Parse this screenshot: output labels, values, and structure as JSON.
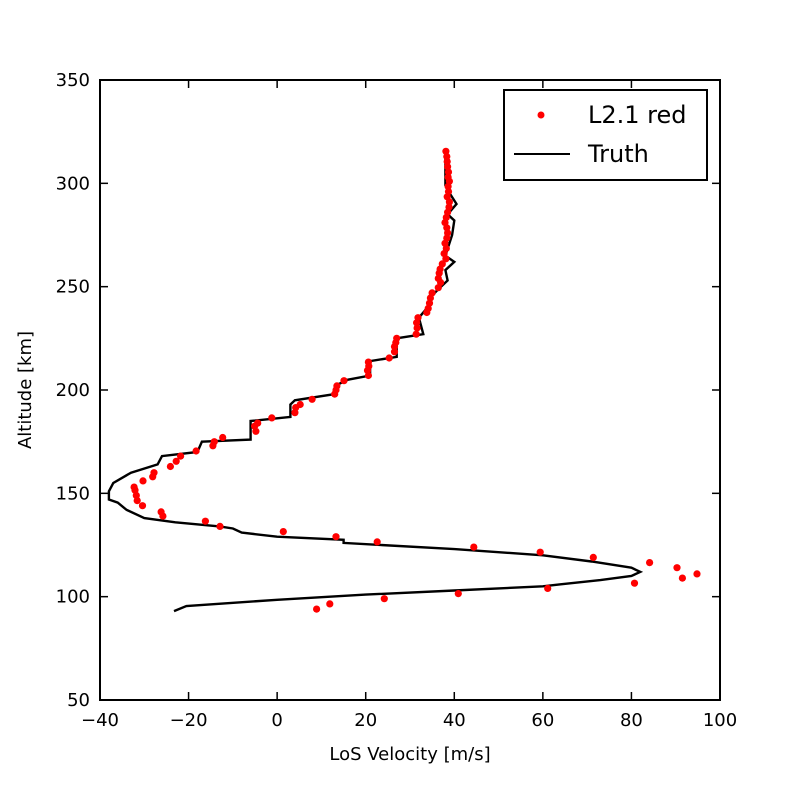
{
  "chart_data": {
    "type": "scatter",
    "xlabel": "LoS Velocity [m/s]",
    "ylabel": "Altitude [km]",
    "xlim": [
      -40,
      100
    ],
    "ylim": [
      50,
      350
    ],
    "xticks": [
      -40,
      -20,
      0,
      20,
      40,
      60,
      80,
      100
    ],
    "yticks": [
      50,
      100,
      150,
      200,
      250,
      300,
      350
    ],
    "xtick_labels": [
      "−40",
      "−20",
      "0",
      "20",
      "40",
      "60",
      "80",
      "100"
    ],
    "ytick_labels": [
      "50",
      "100",
      "150",
      "200",
      "250",
      "300",
      "350"
    ],
    "grid": false,
    "legend_position": "top-right",
    "series": [
      {
        "name": "L2.1 red",
        "kind": "scatter",
        "color": "#ff0000",
        "points": [
          [
            8.9,
            94
          ],
          [
            11.9,
            96.5
          ],
          [
            24.2,
            99
          ],
          [
            40.9,
            101.5
          ],
          [
            61.1,
            104
          ],
          [
            80.7,
            106.5
          ],
          [
            91.5,
            109
          ],
          [
            94.8,
            111
          ],
          [
            90.3,
            114
          ],
          [
            84.1,
            116.5
          ],
          [
            71.4,
            119
          ],
          [
            59.4,
            121.5
          ],
          [
            44.4,
            124
          ],
          [
            22.6,
            126.5
          ],
          [
            13.3,
            129
          ],
          [
            1.4,
            131.5
          ],
          [
            -12.9,
            134
          ],
          [
            -16.2,
            136.5
          ],
          [
            -25.8,
            139
          ],
          [
            -26.2,
            141
          ],
          [
            -30.4,
            144
          ],
          [
            -31.6,
            146.5
          ],
          [
            -31.8,
            149
          ],
          [
            -32.1,
            151.5
          ],
          [
            -32.3,
            153
          ],
          [
            -30.3,
            156
          ],
          [
            -28.1,
            158
          ],
          [
            -27.8,
            160
          ],
          [
            -24.1,
            163
          ],
          [
            -22.8,
            165.5
          ],
          [
            -21.8,
            168
          ],
          [
            -18.3,
            170.5
          ],
          [
            -14.5,
            173
          ],
          [
            -14.2,
            175
          ],
          [
            -12.3,
            177
          ],
          [
            -4.8,
            180
          ],
          [
            -5.1,
            182.5
          ],
          [
            -4.4,
            184
          ],
          [
            -1.2,
            186.5
          ],
          [
            4.0,
            189
          ],
          [
            4.2,
            191.5
          ],
          [
            5.2,
            193
          ],
          [
            7.9,
            195.5
          ],
          [
            13.0,
            198
          ],
          [
            13.3,
            200
          ],
          [
            13.5,
            202
          ],
          [
            15.1,
            204.5
          ],
          [
            20.6,
            207
          ],
          [
            20.4,
            209.5
          ],
          [
            20.7,
            211.5
          ],
          [
            20.6,
            213.5
          ],
          [
            25.3,
            215.5
          ],
          [
            26.5,
            218.5
          ],
          [
            26.5,
            221
          ],
          [
            26.8,
            223
          ],
          [
            27.0,
            225
          ],
          [
            31.4,
            227
          ],
          [
            31.6,
            230
          ],
          [
            31.5,
            232.5
          ],
          [
            31.8,
            235
          ],
          [
            33.8,
            237.5
          ],
          [
            34.1,
            239.5
          ],
          [
            34.4,
            242
          ],
          [
            34.6,
            244.5
          ],
          [
            35.0,
            247
          ],
          [
            36.4,
            249.5
          ],
          [
            36.9,
            252
          ],
          [
            36.4,
            254
          ],
          [
            36.6,
            256.5
          ],
          [
            36.8,
            258.5
          ],
          [
            37.3,
            261
          ],
          [
            38.1,
            263.5
          ],
          [
            37.7,
            266
          ],
          [
            38.2,
            268.5
          ],
          [
            37.9,
            271
          ],
          [
            38.3,
            273.5
          ],
          [
            38.5,
            276
          ],
          [
            38.3,
            278.5
          ],
          [
            37.9,
            281
          ],
          [
            38.2,
            283.5
          ],
          [
            38.5,
            286
          ],
          [
            38.8,
            288.5
          ],
          [
            38.9,
            291
          ],
          [
            38.4,
            293.5
          ],
          [
            38.7,
            296
          ],
          [
            38.6,
            298.5
          ],
          [
            38.9,
            301
          ],
          [
            38.6,
            303
          ],
          [
            38.7,
            305.5
          ],
          [
            38.5,
            308
          ],
          [
            38.4,
            310.5
          ],
          [
            38.3,
            313
          ],
          [
            38.1,
            315.5
          ]
        ]
      },
      {
        "name": "Truth",
        "kind": "line",
        "color": "#000000",
        "points": [
          [
            -23.3,
            93
          ],
          [
            -20.5,
            95.5
          ],
          [
            0,
            98.5
          ],
          [
            20,
            101
          ],
          [
            40,
            103
          ],
          [
            60,
            105
          ],
          [
            64,
            106
          ],
          [
            73,
            108
          ],
          [
            80,
            110
          ],
          [
            82,
            112
          ],
          [
            80,
            114
          ],
          [
            71,
            117
          ],
          [
            60,
            120
          ],
          [
            40,
            123
          ],
          [
            15,
            126
          ],
          [
            15,
            127.5
          ],
          [
            0,
            129
          ],
          [
            -8,
            131
          ],
          [
            -10,
            133
          ],
          [
            -13,
            134
          ],
          [
            -23,
            136
          ],
          [
            -30,
            138
          ],
          [
            -34,
            142
          ],
          [
            -36,
            145.5
          ],
          [
            -38,
            147
          ],
          [
            -38,
            151
          ],
          [
            -37,
            155
          ],
          [
            -33,
            160
          ],
          [
            -27,
            164
          ],
          [
            -26,
            168
          ],
          [
            -18,
            170
          ],
          [
            -17,
            175
          ],
          [
            -6,
            176
          ],
          [
            -6,
            185
          ],
          [
            3,
            187
          ],
          [
            3,
            193
          ],
          [
            4,
            195
          ],
          [
            13,
            198
          ],
          [
            13,
            202
          ],
          [
            16,
            205
          ],
          [
            21,
            207
          ],
          [
            21,
            214
          ],
          [
            27,
            216
          ],
          [
            27,
            225
          ],
          [
            33,
            227
          ],
          [
            32,
            235
          ],
          [
            34,
            240
          ],
          [
            34.7,
            245
          ],
          [
            36.5,
            249
          ],
          [
            38.5,
            253
          ],
          [
            38,
            258
          ],
          [
            40,
            262
          ],
          [
            38,
            265
          ],
          [
            39.5,
            275
          ],
          [
            40,
            282
          ],
          [
            38.5,
            285
          ],
          [
            40.5,
            290
          ],
          [
            39,
            295
          ],
          [
            38,
            299
          ],
          [
            38,
            306
          ],
          [
            38,
            312
          ],
          [
            38.2,
            316
          ]
        ]
      }
    ]
  }
}
